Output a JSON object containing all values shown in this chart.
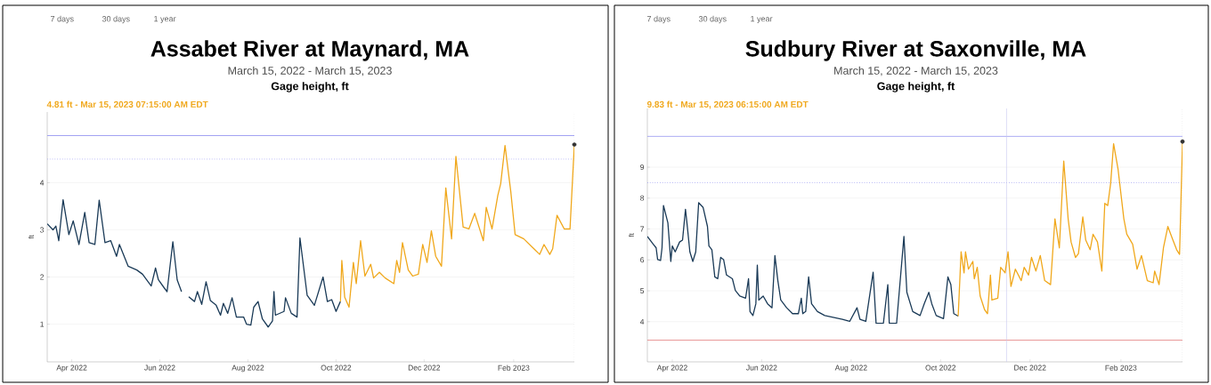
{
  "chart_data": [
    {
      "type": "line",
      "title": "Assabet River at Maynard, MA",
      "subtitle": "March 15, 2022 - March 15, 2023",
      "ylabel": "ft",
      "annotations": [
        "7 days",
        "30 days",
        "1 year",
        "Gage height, ft",
        "4.81 ft - Mar 15, 2023 07:15:00 AM EDT"
      ],
      "xlim": [
        "2022-03-15",
        "2023-03-15"
      ],
      "ylim": [
        0.2,
        5.5
      ],
      "xticks": [
        {
          "value": "2022-04-01",
          "label": "Apr 2022"
        },
        {
          "value": "2022-06-01",
          "label": "Jun 2022"
        },
        {
          "value": "2022-08-01",
          "label": "Aug 2022"
        },
        {
          "value": "2022-10-01",
          "label": "Oct 2022"
        },
        {
          "value": "2022-12-01",
          "label": "Dec 2022"
        },
        {
          "value": "2023-02-01",
          "label": "Feb 2023"
        }
      ],
      "yticks": [
        1,
        2,
        3,
        4
      ],
      "grid": "y",
      "marker": "none",
      "ref_lines": [
        {
          "axis": "y",
          "value": 5.0,
          "color": "#8c8cf0",
          "line_style": "solid"
        },
        {
          "axis": "y",
          "value": 4.5,
          "color": "#8c8cf0",
          "line_style": "dotted"
        },
        {
          "axis": "x",
          "value": "2023-03-15",
          "color": "#bbbbbb",
          "line_style": "dotted"
        }
      ],
      "series": [
        {
          "type": "line",
          "color": "#1a3a57",
          "x": [
            "2022-03-15",
            "2022-03-19",
            "2022-03-21",
            "2022-03-23",
            "2022-03-26",
            "2022-03-30",
            "2022-04-02",
            "2022-04-06",
            "2022-04-10",
            "2022-04-13",
            "2022-04-17",
            "2022-04-20",
            "2022-04-24",
            "2022-04-28",
            "2022-05-02",
            "2022-05-04",
            "2022-05-10",
            "2022-05-16",
            "2022-05-20",
            "2022-05-26",
            "2022-05-29",
            "2022-05-31",
            "2022-06-04",
            "2022-06-06",
            "2022-06-10",
            "2022-06-13",
            "2022-06-16",
            "2022-06-19",
            "2022-06-21",
            "2022-06-25",
            "2022-06-27",
            "2022-06-30",
            "2022-07-03",
            "2022-07-06",
            "2022-07-10",
            "2022-07-13",
            "2022-07-15",
            "2022-07-18",
            "2022-07-21",
            "2022-07-24",
            "2022-07-29",
            "2022-07-31",
            "2022-08-03",
            "2022-08-05",
            "2022-08-08",
            "2022-08-11",
            "2022-08-15",
            "2022-08-18",
            "2022-08-19",
            "2022-08-20",
            "2022-08-26",
            "2022-08-27",
            "2022-08-31",
            "2022-09-04",
            "2022-09-06",
            "2022-09-11",
            "2022-09-16",
            "2022-09-22",
            "2022-09-25",
            "2022-09-28",
            "2022-10-01",
            "2022-10-04"
          ],
          "values": [
            3.13,
            3.0,
            3.08,
            2.77,
            3.64,
            2.9,
            3.19,
            2.69,
            3.37,
            2.73,
            2.69,
            3.63,
            2.73,
            2.77,
            2.44,
            2.69,
            2.23,
            2.15,
            2.06,
            1.81,
            2.19,
            1.94,
            1.77,
            1.69,
            2.75,
            1.94,
            1.69,
            null,
            1.58,
            1.48,
            1.69,
            1.42,
            1.9,
            1.5,
            1.4,
            1.19,
            1.44,
            1.23,
            1.56,
            1.15,
            1.15,
            1.0,
            0.98,
            1.36,
            1.48,
            1.11,
            0.94,
            1.07,
            1.69,
            1.19,
            1.27,
            1.56,
            1.23,
            1.15,
            2.83,
            1.61,
            1.4,
            2.0,
            1.48,
            1.52,
            1.27,
            1.48
          ]
        },
        {
          "type": "line",
          "color": "#f0a81c",
          "x": [
            "2022-10-04",
            "2022-10-05",
            "2022-10-07",
            "2022-10-10",
            "2022-10-13",
            "2022-10-15",
            "2022-10-18",
            "2022-10-21",
            "2022-10-25",
            "2022-10-27",
            "2022-10-31",
            "2022-11-04",
            "2022-11-10",
            "2022-11-12",
            "2022-11-14",
            "2022-11-16",
            "2022-11-20",
            "2022-11-23",
            "2022-11-27",
            "2022-11-30",
            "2022-12-03",
            "2022-12-06",
            "2022-12-09",
            "2022-12-13",
            "2022-12-16",
            "2022-12-20",
            "2022-12-23",
            "2022-12-28",
            "2023-01-01",
            "2023-01-05",
            "2023-01-11",
            "2023-01-13",
            "2023-01-17",
            "2023-01-21",
            "2023-01-23",
            "2023-01-26",
            "2023-01-30",
            "2023-02-02",
            "2023-02-08",
            "2023-02-15",
            "2023-02-19",
            "2023-02-22",
            "2023-02-26",
            "2023-02-28",
            "2023-03-03",
            "2023-03-08",
            "2023-03-12",
            "2023-03-15"
          ],
          "values": [
            1.48,
            2.35,
            1.57,
            1.36,
            2.31,
            1.86,
            2.77,
            2.02,
            2.27,
            1.98,
            2.1,
            1.98,
            1.86,
            2.35,
            2.1,
            2.73,
            2.15,
            2.02,
            2.06,
            2.69,
            2.31,
            2.98,
            2.44,
            2.23,
            3.89,
            2.81,
            4.56,
            3.06,
            3.02,
            3.35,
            2.77,
            3.48,
            3.02,
            3.73,
            3.98,
            4.79,
            3.81,
            2.9,
            2.81,
            2.6,
            2.48,
            2.69,
            2.48,
            2.6,
            3.31,
            3.02,
            3.02,
            4.81
          ]
        },
        {
          "type": "scatter",
          "color": "#333333",
          "marker": "circle",
          "x": [
            "2023-03-15"
          ],
          "values": [
            4.81
          ]
        }
      ]
    },
    {
      "type": "line",
      "title": "Sudbury River at Saxonville, MA",
      "subtitle": "March 15, 2022 - March 15, 2023",
      "ylabel": "ft",
      "annotations": [
        "7 days",
        "30 days",
        "1 year",
        "Gage height, ft",
        "9.83 ft - Mar 15, 2023 06:15:00 AM EDT"
      ],
      "xlim": [
        "2022-03-15",
        "2023-03-15"
      ],
      "ylim": [
        2.7,
        10.9
      ],
      "xticks": [
        {
          "value": "2022-04-01",
          "label": "Apr 2022"
        },
        {
          "value": "2022-06-01",
          "label": "Jun 2022"
        },
        {
          "value": "2022-08-01",
          "label": "Aug 2022"
        },
        {
          "value": "2022-10-01",
          "label": "Oct 2022"
        },
        {
          "value": "2022-12-01",
          "label": "Dec 2022"
        },
        {
          "value": "2023-02-01",
          "label": "Feb 2023"
        }
      ],
      "yticks": [
        4,
        5,
        6,
        7,
        8,
        9
      ],
      "grid": "y",
      "marker": "none",
      "ref_lines": [
        {
          "axis": "y",
          "value": 10.0,
          "color": "#8c8cf0",
          "line_style": "solid"
        },
        {
          "axis": "y",
          "value": 8.5,
          "color": "#8c8cf0",
          "line_style": "dotted"
        },
        {
          "axis": "y",
          "value": 3.4,
          "color": "#e07070",
          "line_style": "solid"
        },
        {
          "axis": "x",
          "value": "2022-11-15",
          "color": "#c8c8f0",
          "line_style": "solid"
        },
        {
          "axis": "x",
          "value": "2023-03-15",
          "color": "#bbbbbb",
          "line_style": "dotted"
        }
      ],
      "series": [
        {
          "type": "line",
          "color": "#1a3a57",
          "x": [
            "2022-03-15",
            "2022-03-19",
            "2022-03-21",
            "2022-03-22",
            "2022-03-24",
            "2022-03-25",
            "2022-03-26",
            "2022-03-29",
            "2022-03-31",
            "2022-04-01",
            "2022-04-03",
            "2022-04-06",
            "2022-04-08",
            "2022-04-10",
            "2022-04-11",
            "2022-04-13",
            "2022-04-15",
            "2022-04-17",
            "2022-04-19",
            "2022-04-22",
            "2022-04-25",
            "2022-04-26",
            "2022-04-28",
            "2022-04-30",
            "2022-05-02",
            "2022-05-04",
            "2022-05-06",
            "2022-05-08",
            "2022-05-12",
            "2022-05-14",
            "2022-05-17",
            "2022-05-21",
            "2022-05-23",
            "2022-05-24",
            "2022-05-26",
            "2022-05-28",
            "2022-05-29",
            "2022-05-30",
            "2022-06-02",
            "2022-06-05",
            "2022-06-08",
            "2022-06-10",
            "2022-06-12",
            "2022-06-14",
            "2022-06-18",
            "2022-06-22",
            "2022-06-26",
            "2022-06-28",
            "2022-06-29",
            "2022-07-01",
            "2022-07-03",
            "2022-07-05",
            "2022-07-09",
            "2022-07-14",
            "2022-07-20",
            "2022-07-26",
            "2022-07-31",
            "2022-08-05",
            "2022-08-07",
            "2022-08-11",
            "2022-08-16",
            "2022-08-18",
            "2022-08-23",
            "2022-08-26",
            "2022-08-27",
            "2022-09-01",
            "2022-09-06",
            "2022-09-08",
            "2022-09-12",
            "2022-09-17",
            "2022-09-20",
            "2022-09-23",
            "2022-09-25",
            "2022-09-28",
            "2022-10-03",
            "2022-10-06",
            "2022-10-08",
            "2022-10-10",
            "2022-10-13"
          ],
          "values": [
            6.76,
            6.51,
            6.39,
            6.01,
            5.98,
            6.39,
            7.76,
            7.2,
            5.95,
            6.45,
            6.26,
            6.58,
            6.64,
            7.64,
            7.2,
            6.26,
            5.95,
            6.26,
            7.85,
            7.7,
            7.08,
            6.45,
            6.33,
            5.45,
            5.39,
            6.08,
            6.01,
            5.51,
            5.39,
            5.01,
            4.83,
            4.76,
            5.39,
            4.33,
            4.2,
            4.58,
            5.83,
            4.7,
            4.83,
            4.58,
            4.45,
            6.14,
            5.33,
            4.7,
            4.45,
            4.26,
            4.26,
            4.76,
            4.26,
            4.33,
            5.45,
            4.58,
            4.33,
            4.2,
            4.14,
            4.08,
            4.01,
            4.45,
            4.08,
            4.01,
            5.6,
            3.95,
            3.95,
            5.2,
            3.95,
            3.95,
            6.76,
            4.95,
            4.33,
            4.2,
            4.6,
            4.95,
            4.58,
            4.2,
            4.1,
            5.45,
            5.2,
            4.26,
            4.18
          ]
        },
        {
          "type": "line",
          "color": "#f0a81c",
          "x": [
            "2022-10-13",
            "2022-10-15",
            "2022-10-17",
            "2022-10-18",
            "2022-10-20",
            "2022-10-23",
            "2022-10-24",
            "2022-10-26",
            "2022-10-28",
            "2022-10-31",
            "2022-11-02",
            "2022-11-04",
            "2022-11-05",
            "2022-11-09",
            "2022-11-11",
            "2022-11-14",
            "2022-11-16",
            "2022-11-18",
            "2022-11-21",
            "2022-11-25",
            "2022-11-27",
            "2022-11-30",
            "2022-12-02",
            "2022-12-05",
            "2022-12-08",
            "2022-12-11",
            "2022-12-15",
            "2022-12-18",
            "2022-12-21",
            "2022-12-24",
            "2022-12-27",
            "2022-12-29",
            "2023-01-01",
            "2023-01-03",
            "2023-01-06",
            "2023-01-08",
            "2023-01-11",
            "2023-01-13",
            "2023-01-16",
            "2023-01-19",
            "2023-01-21",
            "2023-01-23",
            "2023-01-25",
            "2023-01-27",
            "2023-01-30",
            "2023-02-03",
            "2023-02-05",
            "2023-02-09",
            "2023-02-12",
            "2023-02-15",
            "2023-02-19",
            "2023-02-23",
            "2023-02-24",
            "2023-02-27",
            "2023-03-02",
            "2023-03-05",
            "2023-03-08",
            "2023-03-11",
            "2023-03-13",
            "2023-03-15"
          ],
          "values": [
            4.18,
            6.26,
            5.58,
            6.26,
            5.7,
            5.95,
            5.39,
            5.76,
            4.83,
            4.39,
            4.26,
            5.51,
            4.7,
            4.76,
            5.76,
            5.58,
            6.26,
            5.14,
            5.7,
            5.33,
            5.76,
            5.51,
            6.08,
            5.64,
            6.14,
            5.33,
            5.2,
            7.33,
            6.39,
            9.2,
            7.33,
            6.58,
            6.08,
            6.2,
            7.39,
            6.64,
            6.33,
            6.83,
            6.58,
            5.64,
            7.83,
            7.76,
            8.48,
            9.76,
            8.95,
            7.33,
            6.83,
            6.51,
            5.7,
            6.14,
            5.33,
            5.26,
            5.64,
            5.2,
            6.39,
            7.08,
            6.7,
            6.33,
            6.18,
            9.83
          ]
        },
        {
          "type": "scatter",
          "color": "#333333",
          "marker": "circle",
          "x": [
            "2023-03-15"
          ],
          "values": [
            9.83
          ]
        }
      ]
    }
  ]
}
